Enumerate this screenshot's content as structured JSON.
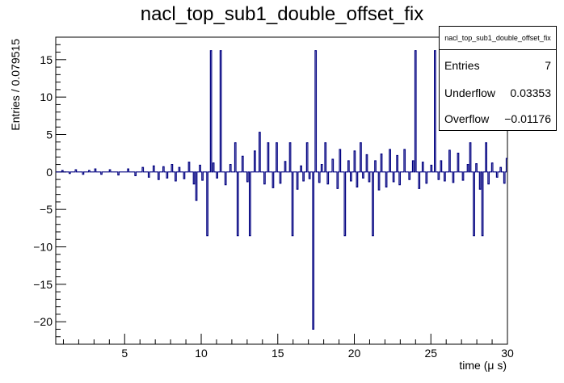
{
  "chart_data": {
    "type": "histogram",
    "title": "nacl_top_sub1_double_offset_fix",
    "xlabel": "time (μ s)",
    "ylabel": "Entries / 0.079515",
    "xlim": [
      0.5,
      30
    ],
    "ylim": [
      -23,
      18
    ],
    "x_ticks": [
      5,
      10,
      15,
      20,
      25,
      30
    ],
    "y_ticks": [
      -20,
      -15,
      -10,
      -5,
      0,
      5,
      10,
      15
    ],
    "line_color": "#000080",
    "bin_width": 0.079515,
    "baseline_start": 0.5,
    "baseline_value": 0,
    "features": [
      {
        "x": 0.9,
        "y": 0.2
      },
      {
        "x": 1.4,
        "y": -0.2
      },
      {
        "x": 1.8,
        "y": 0.3
      },
      {
        "x": 2.3,
        "y": -0.3
      },
      {
        "x": 2.7,
        "y": 0.2
      },
      {
        "x": 3.1,
        "y": 0.4
      },
      {
        "x": 3.5,
        "y": -0.3
      },
      {
        "x": 4.0,
        "y": 0.3
      },
      {
        "x": 4.6,
        "y": -0.4
      },
      {
        "x": 5.2,
        "y": 0.4
      },
      {
        "x": 5.7,
        "y": -0.5
      },
      {
        "x": 6.2,
        "y": 0.6
      },
      {
        "x": 6.6,
        "y": -0.7
      },
      {
        "x": 6.9,
        "y": 0.8
      },
      {
        "x": 7.2,
        "y": -1.0
      },
      {
        "x": 7.5,
        "y": 0.7
      },
      {
        "x": 7.8,
        "y": -0.8
      },
      {
        "x": 8.1,
        "y": 1.0
      },
      {
        "x": 8.3,
        "y": -1.2
      },
      {
        "x": 8.6,
        "y": 0.6
      },
      {
        "x": 8.9,
        "y": -0.9
      },
      {
        "x": 9.2,
        "y": 1.3
      },
      {
        "x": 9.5,
        "y": -1.6
      },
      {
        "x": 9.7,
        "y": -3.8
      },
      {
        "x": 9.9,
        "y": 0.9
      },
      {
        "x": 10.1,
        "y": -1.1
      },
      {
        "x": 10.4,
        "y": -8.5
      },
      {
        "x": 10.6,
        "y": 16.2
      },
      {
        "x": 10.8,
        "y": 1.2
      },
      {
        "x": 11.0,
        "y": -0.8
      },
      {
        "x": 11.3,
        "y": 16.2
      },
      {
        "x": 11.6,
        "y": -1.7
      },
      {
        "x": 11.9,
        "y": 1.0
      },
      {
        "x": 12.2,
        "y": 3.9
      },
      {
        "x": 12.4,
        "y": -8.5
      },
      {
        "x": 12.7,
        "y": 2.1
      },
      {
        "x": 13.0,
        "y": -1.3
      },
      {
        "x": 13.2,
        "y": -8.5
      },
      {
        "x": 13.5,
        "y": 2.8
      },
      {
        "x": 13.8,
        "y": 5.3
      },
      {
        "x": 14.1,
        "y": -1.6
      },
      {
        "x": 14.4,
        "y": 3.9
      },
      {
        "x": 14.7,
        "y": -2.1
      },
      {
        "x": 14.9,
        "y": 3.9
      },
      {
        "x": 15.2,
        "y": -1.5
      },
      {
        "x": 15.5,
        "y": 1.4
      },
      {
        "x": 15.8,
        "y": 3.9
      },
      {
        "x": 16.0,
        "y": -8.5
      },
      {
        "x": 16.3,
        "y": -2.3
      },
      {
        "x": 16.5,
        "y": 0.8
      },
      {
        "x": 16.7,
        "y": -1.2
      },
      {
        "x": 16.9,
        "y": 3.9
      },
      {
        "x": 17.1,
        "y": -0.9
      },
      {
        "x": 17.3,
        "y": -21.0
      },
      {
        "x": 17.5,
        "y": 16.2
      },
      {
        "x": 17.7,
        "y": -1.4
      },
      {
        "x": 17.9,
        "y": 1.0
      },
      {
        "x": 18.1,
        "y": 3.9
      },
      {
        "x": 18.3,
        "y": -1.6
      },
      {
        "x": 18.6,
        "y": 1.7
      },
      {
        "x": 18.9,
        "y": -2.2
      },
      {
        "x": 19.1,
        "y": 3.0
      },
      {
        "x": 19.4,
        "y": -8.5
      },
      {
        "x": 19.6,
        "y": 1.5
      },
      {
        "x": 19.8,
        "y": -1.2
      },
      {
        "x": 20.0,
        "y": 2.8
      },
      {
        "x": 20.2,
        "y": -2.0
      },
      {
        "x": 20.4,
        "y": 3.9
      },
      {
        "x": 20.6,
        "y": -0.8
      },
      {
        "x": 20.8,
        "y": 2.3
      },
      {
        "x": 21.0,
        "y": -1.3
      },
      {
        "x": 21.2,
        "y": -8.5
      },
      {
        "x": 21.4,
        "y": 1.5
      },
      {
        "x": 21.6,
        "y": -2.4
      },
      {
        "x": 21.8,
        "y": 2.4
      },
      {
        "x": 22.1,
        "y": -2.0
      },
      {
        "x": 22.3,
        "y": 3.0
      },
      {
        "x": 22.6,
        "y": -1.3
      },
      {
        "x": 22.8,
        "y": 2.2
      },
      {
        "x": 23.0,
        "y": -1.7
      },
      {
        "x": 23.3,
        "y": 3.0
      },
      {
        "x": 23.6,
        "y": -1.0
      },
      {
        "x": 23.8,
        "y": 1.5
      },
      {
        "x": 24.0,
        "y": 16.2
      },
      {
        "x": 24.2,
        "y": -2.2
      },
      {
        "x": 24.5,
        "y": 1.3
      },
      {
        "x": 24.7,
        "y": -1.5
      },
      {
        "x": 25.0,
        "y": 0.9
      },
      {
        "x": 25.3,
        "y": 16.2
      },
      {
        "x": 25.5,
        "y": -1.0
      },
      {
        "x": 25.7,
        "y": 1.5
      },
      {
        "x": 25.9,
        "y": -1.2
      },
      {
        "x": 26.2,
        "y": 2.9
      },
      {
        "x": 26.5,
        "y": -1.4
      },
      {
        "x": 26.8,
        "y": 2.5
      },
      {
        "x": 27.1,
        "y": -1.1
      },
      {
        "x": 27.4,
        "y": 1.0
      },
      {
        "x": 27.6,
        "y": 3.9
      },
      {
        "x": 27.8,
        "y": -8.5
      },
      {
        "x": 28.0,
        "y": 1.1
      },
      {
        "x": 28.2,
        "y": -2.3
      },
      {
        "x": 28.4,
        "y": -8.5
      },
      {
        "x": 28.6,
        "y": 3.9
      },
      {
        "x": 28.8,
        "y": -1.6
      },
      {
        "x": 29.0,
        "y": 1.2
      },
      {
        "x": 29.3,
        "y": -0.7
      },
      {
        "x": 29.6,
        "y": 0.6
      },
      {
        "x": 29.8,
        "y": -1.5
      },
      {
        "x": 29.95,
        "y": 1.8
      }
    ]
  },
  "stats": {
    "title": "nacl_top_sub1_double_offset_fix",
    "rows": [
      {
        "label": "Entries",
        "value": "7"
      },
      {
        "label": "Underflow",
        "value": "0.03353"
      },
      {
        "label": "Overflow",
        "value": "−0.01176"
      }
    ]
  }
}
